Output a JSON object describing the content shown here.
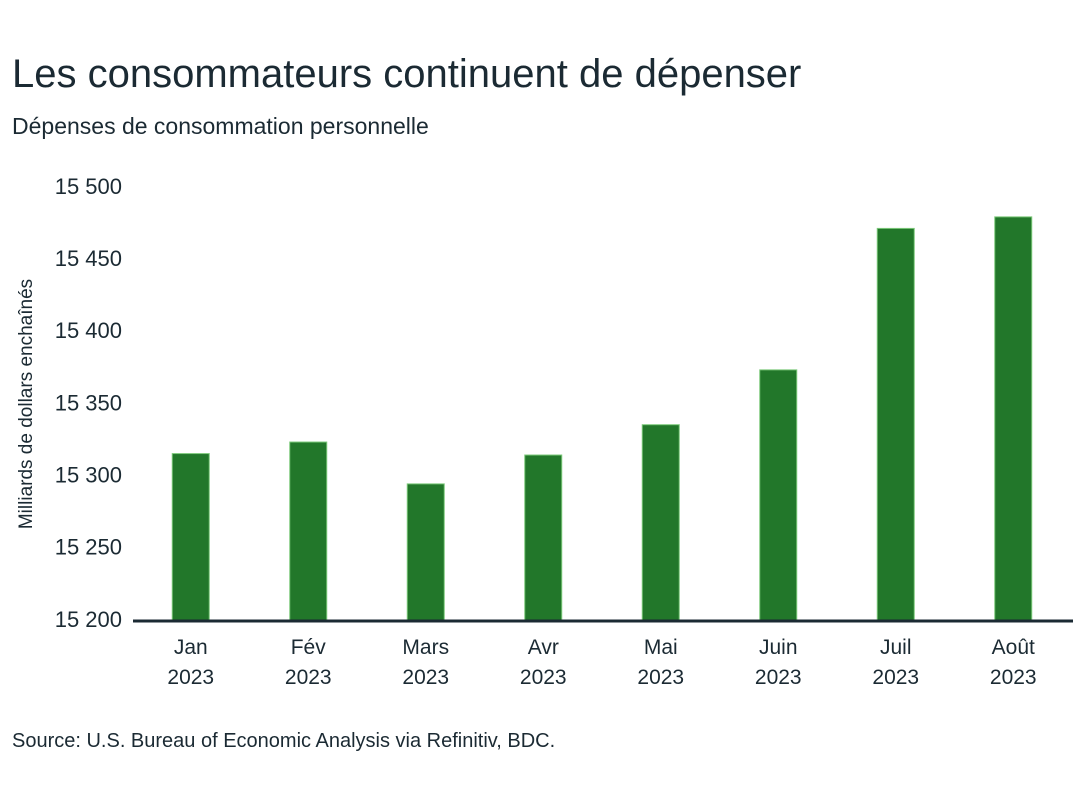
{
  "colors": {
    "bar": "#22772a",
    "bar_edge": "#7cc97a",
    "axis": "#1b2a33",
    "text": "#1b2a33"
  },
  "chart_data": {
    "type": "bar",
    "title": "Les consommateurs continuent de dépenser",
    "subtitle": "Dépenses de consommation personnelle",
    "xlabel": "",
    "ylabel": "Milliards de dollars enchaînés",
    "categories": [
      "Jan",
      "Fév",
      "Mars",
      "Avr",
      "Mai",
      "Juin",
      "Juil",
      "Août"
    ],
    "category_years": [
      "2023",
      "2023",
      "2023",
      "2023",
      "2023",
      "2023",
      "2023",
      "2023"
    ],
    "values": [
      15316,
      15324,
      15295,
      15315,
      15336,
      15374,
      15472,
      15480
    ],
    "ylim": [
      15200,
      15500
    ],
    "yticks": [
      15200,
      15250,
      15300,
      15350,
      15400,
      15450,
      15500
    ],
    "ytick_labels": [
      "15 200",
      "15 250",
      "15 300",
      "15 350",
      "15 400",
      "15 450",
      "15 500"
    ],
    "grid": false,
    "legend": "none",
    "source": "Source: U.S. Bureau of Economic Analysis via Refinitiv, BDC."
  }
}
